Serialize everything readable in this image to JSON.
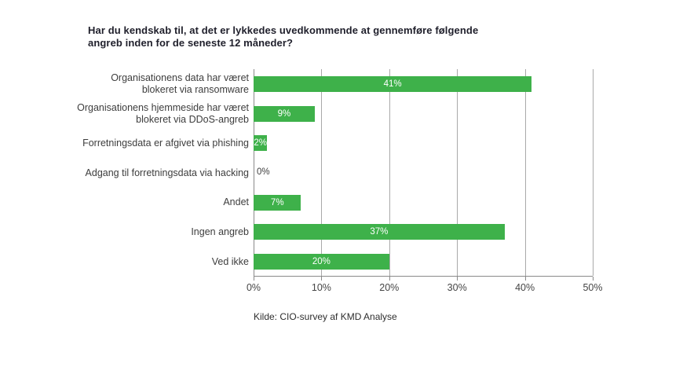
{
  "page": {
    "background": "#ffffff"
  },
  "chart_data": {
    "type": "bar",
    "orientation": "horizontal",
    "title": "Har du kendskab til, at det er lykkedes uvedkommende at gennemføre følgende\nangreb inden for de seneste 12 måneder?",
    "categories": [
      "Organisationens data har været\nblokeret via ransomware",
      "Organisationens hjemmeside har været\nblokeret via DDoS-angreb",
      "Forretningsdata er afgivet via phishing",
      "Adgang til forretningsdata via hacking",
      "Andet",
      "Ingen angreb",
      "Ved ikke"
    ],
    "values": [
      41,
      9,
      2,
      0,
      7,
      37,
      20
    ],
    "value_labels": [
      "41%",
      "9%",
      "2%",
      "0%",
      "7%",
      "37%",
      "20%"
    ],
    "xlim": [
      0,
      50
    ],
    "x_tick_values": [
      0,
      10,
      20,
      30,
      40,
      50
    ],
    "x_tick_labels": [
      "0%",
      "10%",
      "20%",
      "30%",
      "40%",
      "50%"
    ],
    "grid": "vertical",
    "legend": "none",
    "bar_color": "#3eb14a",
    "value_label_color_inside": "#ffffff",
    "value_label_color_outside": "#3d3d3d",
    "source": "Kilde: CIO-survey af KMD Analyse"
  }
}
